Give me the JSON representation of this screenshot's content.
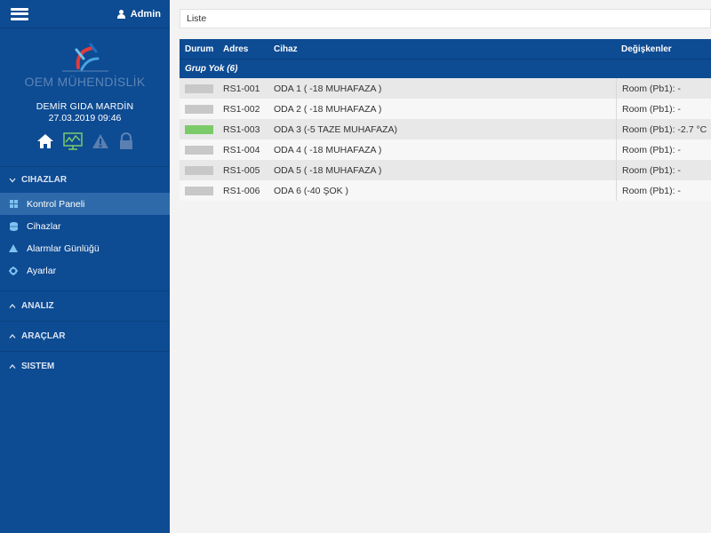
{
  "header": {
    "user_label": "Admin"
  },
  "brand": {
    "logo_text": "OEM MÜHENDİSLİK",
    "company": "DEMİR GIDA MARDİN",
    "datetime": "27.03.2019 09:46"
  },
  "status_icons": [
    "home-icon",
    "monitor-chart-icon",
    "warning-icon",
    "lock-icon"
  ],
  "nav": {
    "cihazlar": {
      "label": "CIHAZLAR",
      "items": [
        {
          "label": "Kontrol Paneli",
          "icon": "dashboard-icon",
          "active": true
        },
        {
          "label": "Cihazlar",
          "icon": "database-icon"
        },
        {
          "label": "Alarmlar Günlüğü",
          "icon": "warning-icon"
        },
        {
          "label": "Ayarlar",
          "icon": "gear-icon"
        }
      ]
    },
    "analiz": {
      "label": "ANALIZ"
    },
    "araclar": {
      "label": "ARAÇLAR"
    },
    "sistem": {
      "label": "SISTEM"
    }
  },
  "search": {
    "value": "Liste"
  },
  "table": {
    "headers": {
      "durum": "Durum",
      "adres": "Adres",
      "cihaz": "Cihaz",
      "degiskenler": "Değişkenler"
    },
    "group": "Grup Yok (6)",
    "rows": [
      {
        "status": "inactive",
        "adres": "RS1-001",
        "cihaz": "ODA 1 ( -18 MUHAFAZA )",
        "deg": "Room (Pb1): -"
      },
      {
        "status": "inactive",
        "adres": "RS1-002",
        "cihaz": "ODA 2 ( -18 MUHAFAZA )",
        "deg": "Room (Pb1): -"
      },
      {
        "status": "ok",
        "adres": "RS1-003",
        "cihaz": "ODA 3 (-5 TAZE MUHAFAZA)",
        "deg": "Room (Pb1): -2.7 °C"
      },
      {
        "status": "inactive",
        "adres": "RS1-004",
        "cihaz": "ODA 4 ( -18 MUHAFAZA )",
        "deg": "Room (Pb1): -"
      },
      {
        "status": "inactive",
        "adres": "RS1-005",
        "cihaz": "ODA 5 ( -18 MUHAFAZA )",
        "deg": "Room (Pb1): -"
      },
      {
        "status": "inactive",
        "adres": "RS1-006",
        "cihaz": "ODA 6 (-40 ŞOK )",
        "deg": "Room (Pb1): -"
      }
    ]
  },
  "colors": {
    "primary": "#0d4b93",
    "active_item": "#2e6aaa",
    "status_ok": "#7ccb6b",
    "status_inactive": "#c8c8c8"
  }
}
